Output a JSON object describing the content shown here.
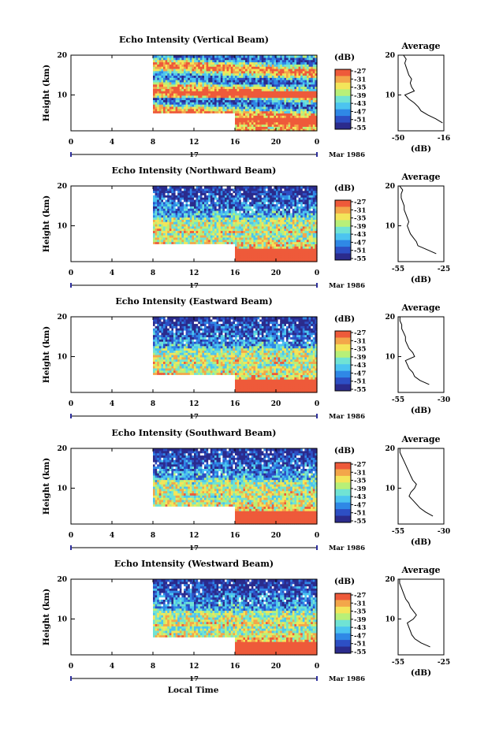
{
  "chart_data": [
    {
      "type": "heatmap",
      "title": "Echo Intensity (Vertical Beam)",
      "ylabel": "Height (km)",
      "colorbar": {
        "unit": "(dB)",
        "ticks": [
          "-27",
          "-31",
          "-35",
          "-39",
          "-43",
          "-47",
          "-51",
          "-55"
        ]
      },
      "profile": {
        "title": "Average",
        "xlabel": "(dB)",
        "xticks": [
          "-50",
          "-16"
        ],
        "xlim": [
          -50,
          -16
        ],
        "heights": [
          3,
          4,
          5,
          6,
          7,
          8,
          9,
          10,
          11,
          12,
          13,
          14,
          15,
          16,
          17,
          18,
          19,
          20
        ],
        "values": [
          -17,
          -22,
          -28,
          -33,
          -35,
          -38,
          -42,
          -45,
          -38,
          -40,
          -41,
          -40,
          -42,
          -43,
          -44,
          -45,
          -44,
          -46
        ]
      }
    },
    {
      "type": "heatmap",
      "title": "Echo Intensity (Northward Beam)",
      "ylabel": "Height (km)",
      "colorbar": {
        "unit": "(dB)",
        "ticks": [
          "-27",
          "-31",
          "-35",
          "-39",
          "-43",
          "-47",
          "-51",
          "-55"
        ]
      },
      "profile": {
        "title": "Average",
        "xlabel": "(dB)",
        "xticks": [
          "-55",
          "-25"
        ],
        "xlim": [
          -55,
          -25
        ],
        "heights": [
          3,
          4,
          5,
          6,
          7,
          8,
          9,
          10,
          11,
          12,
          13,
          14,
          15,
          16,
          17,
          18,
          19,
          20
        ],
        "values": [
          -30,
          -36,
          -42,
          -43,
          -45,
          -47,
          -48,
          -49,
          -48,
          -49,
          -50,
          -51,
          -51,
          -52,
          -53,
          -53,
          -52,
          -54
        ]
      }
    },
    {
      "type": "heatmap",
      "title": "Echo Intensity (Eastward Beam)",
      "ylabel": "Height (km)",
      "colorbar": {
        "unit": "(dB)",
        "ticks": [
          "-27",
          "-31",
          "-35",
          "-39",
          "-43",
          "-47",
          "-51",
          "-55"
        ]
      },
      "profile": {
        "title": "Average",
        "xlabel": "(dB)",
        "xticks": [
          "-55",
          "-30"
        ],
        "xlim": [
          -55,
          -30
        ],
        "heights": [
          3,
          4,
          5,
          6,
          7,
          8,
          9,
          10,
          11,
          12,
          13,
          14,
          15,
          16,
          17,
          18,
          19,
          20
        ],
        "values": [
          -38,
          -43,
          -46,
          -47,
          -49,
          -50,
          -51,
          -46,
          -47,
          -49,
          -50,
          -51,
          -51,
          -52,
          -53,
          -53,
          -54,
          -54
        ]
      }
    },
    {
      "type": "heatmap",
      "title": "Echo Intensity (Southward Beam)",
      "ylabel": "Height (km)",
      "colorbar": {
        "unit": "(dB)",
        "ticks": [
          "-27",
          "-31",
          "-35",
          "-39",
          "-43",
          "-47",
          "-51",
          "-55"
        ]
      },
      "profile": {
        "title": "Average",
        "xlabel": "(dB)",
        "xticks": [
          "-55",
          "-30"
        ],
        "xlim": [
          -55,
          -30
        ],
        "heights": [
          3,
          4,
          5,
          6,
          7,
          8,
          9,
          10,
          11,
          12,
          13,
          14,
          15,
          16,
          17,
          18,
          19,
          20
        ],
        "values": [
          -36,
          -40,
          -43,
          -45,
          -47,
          -49,
          -48,
          -46,
          -45,
          -47,
          -48,
          -49,
          -50,
          -51,
          -52,
          -53,
          -54,
          -54
        ]
      }
    },
    {
      "type": "heatmap",
      "title": "Echo Intensity (Westward Beam)",
      "ylabel": "Height (km)",
      "colorbar": {
        "unit": "(dB)",
        "ticks": [
          "-27",
          "-31",
          "-35",
          "-39",
          "-43",
          "-47",
          "-51",
          "-55"
        ]
      },
      "profile": {
        "title": "Average",
        "xlabel": "(dB)",
        "xticks": [
          "-55",
          "-25"
        ],
        "xlim": [
          -55,
          -25
        ],
        "heights": [
          3,
          4,
          5,
          6,
          7,
          8,
          9,
          10,
          11,
          12,
          13,
          14,
          15,
          16,
          17,
          18,
          19,
          20
        ],
        "values": [
          -34,
          -40,
          -44,
          -46,
          -47,
          -48,
          -49,
          -45,
          -43,
          -45,
          -47,
          -48,
          -50,
          -51,
          -52,
          -53,
          -54,
          -54
        ]
      }
    }
  ],
  "axes": {
    "heights": {
      "ticks": [
        "20",
        "10"
      ],
      "ylim": [
        1,
        20
      ]
    },
    "time": {
      "ticks": [
        "0",
        "4",
        "8",
        "12",
        "16",
        "20",
        "0"
      ],
      "xlim": [
        0,
        24
      ]
    },
    "day_marker": "17",
    "date_label": "Mar 1986",
    "xlabel": "Local Time",
    "profile_yticks": [
      "20",
      "10"
    ]
  },
  "colormap": [
    "#2b2b8c",
    "#2d4fc4",
    "#2f88e6",
    "#4cc4f0",
    "#70e3d4",
    "#b8f078",
    "#f3e55a",
    "#f3a64a",
    "#ee5a3a"
  ]
}
